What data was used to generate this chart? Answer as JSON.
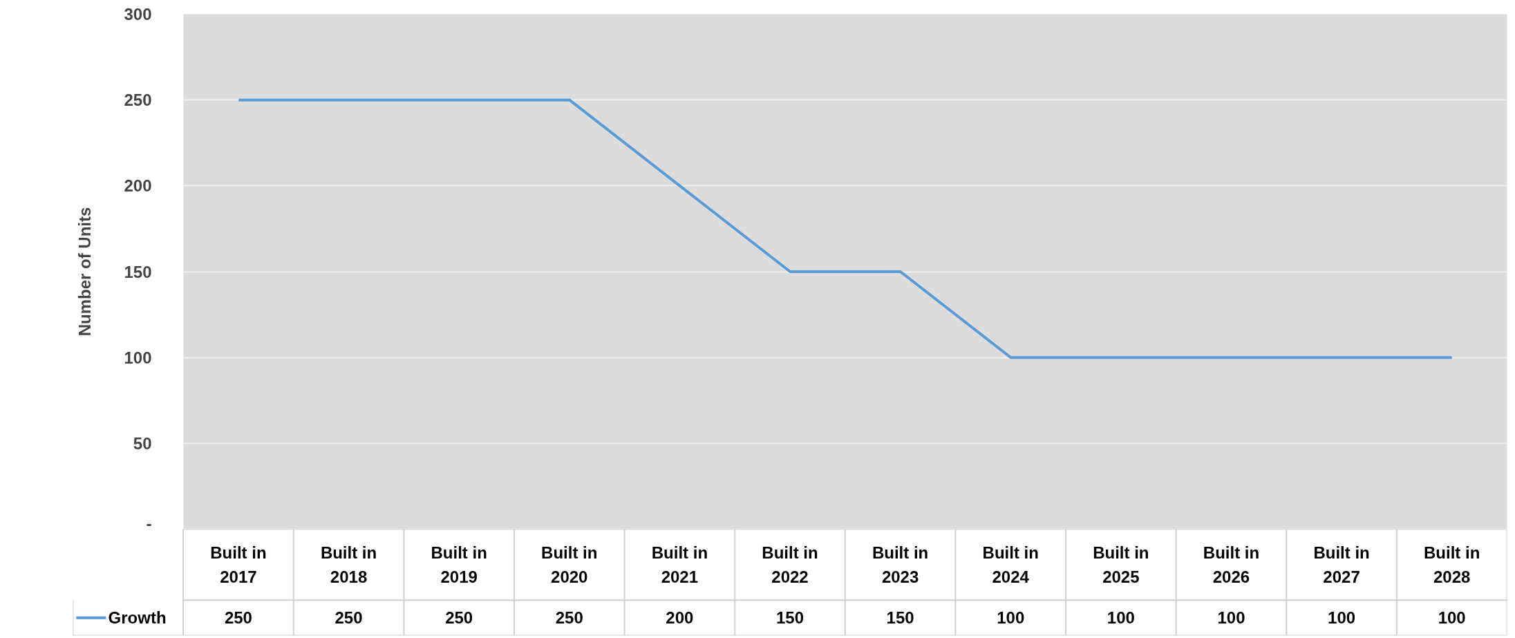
{
  "chart_data": {
    "type": "line",
    "ylabel": "Number of Units",
    "categories": [
      "Built in 2017",
      "Built in 2018",
      "Built in 2019",
      "Built in 2020",
      "Built in 2021",
      "Built in 2022",
      "Built in 2023",
      "Built in 2024",
      "Built in 2025",
      "Built in 2026",
      "Built in 2027",
      "Built in 2028"
    ],
    "series": [
      {
        "name": "Growth",
        "color": "#5b9bd5",
        "values": [
          250,
          250,
          250,
          250,
          200,
          150,
          150,
          100,
          100,
          100,
          100,
          100
        ]
      }
    ],
    "ylim": [
      0,
      300
    ],
    "yticks": [
      {
        "value": 0,
        "label": "-"
      },
      50,
      100,
      150,
      200,
      250,
      300
    ],
    "grid": "y",
    "data_labels": true,
    "marker": "none",
    "line_style": "solid"
  }
}
